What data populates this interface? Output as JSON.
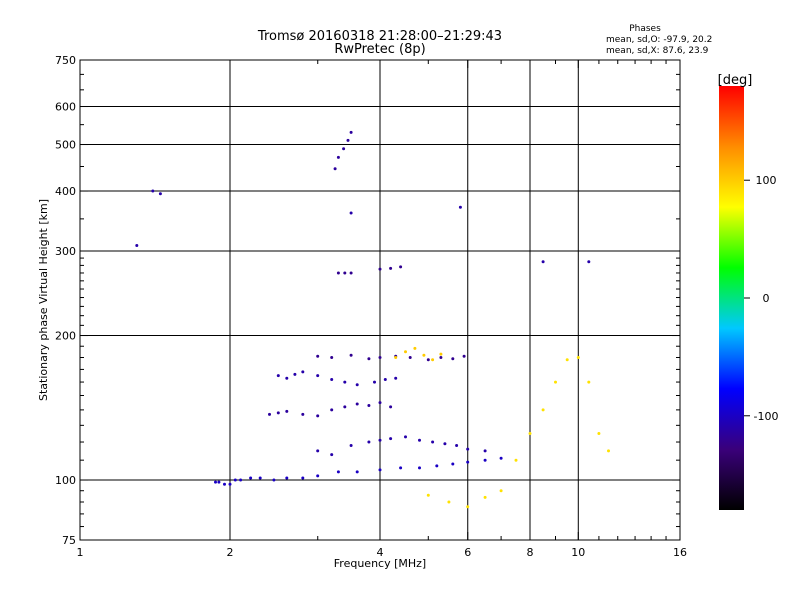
{
  "chart_data": {
    "type": "scatter",
    "title": "Tromsø 20160318 21:28:00–21:29:43",
    "subtitle": "RwPretec (8p)",
    "xlabel": "Frequency [MHz]",
    "ylabel": "Stationary phase Virtual Height [km]",
    "xscale": "log",
    "yscale": "log",
    "xlim": [
      1,
      16
    ],
    "ylim": [
      75,
      750
    ],
    "x_ticks": [
      1,
      2,
      4,
      6,
      8,
      10,
      16
    ],
    "y_ticks": [
      75,
      100,
      200,
      300,
      400,
      500,
      600,
      750
    ],
    "x_grid": [
      2,
      4,
      6,
      8,
      10
    ],
    "y_grid": [
      100,
      200,
      300,
      400,
      500,
      600
    ],
    "grid": true,
    "stats": {
      "title": "Phases",
      "line1": "mean, sd,O: -97.9, 20.2",
      "line2": "mean, sd,X:  87.6, 23.9"
    },
    "colorbar": {
      "label": "[deg]",
      "range": [
        -180,
        180
      ],
      "ticks": [
        100,
        0,
        -100
      ],
      "colors": [
        "#000000",
        "#3a007a",
        "#0000ff",
        "#00c8ff",
        "#00ff00",
        "#ffff00",
        "#ff8c00",
        "#ff0000"
      ]
    },
    "series": [
      {
        "x": [
          1.87,
          1.9,
          1.95,
          2.0,
          2.05,
          2.1,
          2.2,
          2.3,
          2.45,
          2.6,
          2.8,
          3.0,
          3.3,
          3.6,
          4.0,
          4.4,
          4.8,
          5.2,
          5.6,
          6.0,
          6.5,
          7.0
        ],
        "y": [
          99,
          99,
          98,
          98,
          100,
          100,
          101,
          101,
          100,
          101,
          101,
          102,
          104,
          104,
          105,
          106,
          106,
          107,
          108,
          109,
          110,
          111
        ],
        "phase": -100
      },
      {
        "x": [
          3.0,
          3.2,
          3.5,
          3.8,
          4.0,
          4.2,
          4.5,
          4.8,
          5.1,
          5.4,
          5.7,
          6.0,
          6.5
        ],
        "y": [
          115,
          113,
          118,
          120,
          121,
          122,
          123,
          121,
          120,
          119,
          118,
          116,
          115
        ],
        "phase": -110
      },
      {
        "x": [
          2.4,
          2.5,
          2.6,
          2.8,
          3.0,
          3.2,
          3.4,
          3.6,
          3.8,
          4.0,
          4.2
        ],
        "y": [
          137,
          138,
          139,
          137,
          136,
          140,
          142,
          144,
          143,
          145,
          142
        ],
        "phase": -115
      },
      {
        "x": [
          2.5,
          2.6,
          2.7,
          2.8,
          3.0,
          3.2,
          3.4,
          3.6,
          3.9,
          4.1,
          4.3
        ],
        "y": [
          165,
          163,
          166,
          168,
          165,
          162,
          160,
          158,
          160,
          162,
          163
        ],
        "phase": -110
      },
      {
        "x": [
          3.0,
          3.2,
          3.5,
          3.8,
          4.0,
          4.3,
          4.6,
          5.0,
          5.3,
          5.6,
          5.9
        ],
        "y": [
          181,
          180,
          182,
          179,
          180,
          181,
          180,
          178,
          180,
          179,
          181
        ],
        "phase": -120
      },
      {
        "x": [
          4.3,
          4.5,
          4.7,
          4.9,
          5.1,
          5.3
        ],
        "y": [
          180,
          185,
          188,
          182,
          178,
          183
        ],
        "phase": 100
      },
      {
        "x": [
          3.25,
          3.3,
          3.38,
          3.45,
          3.5
        ],
        "y": [
          445,
          470,
          490,
          510,
          530
        ],
        "phase": -115
      },
      {
        "x": [
          3.3,
          3.4,
          3.5,
          4.0,
          4.2,
          4.4
        ],
        "y": [
          270,
          270,
          270,
          275,
          276,
          278
        ],
        "phase": -120
      },
      {
        "x": [
          5.0,
          5.5,
          6.0,
          6.5,
          7.0,
          7.5,
          8.0,
          8.5,
          9.0,
          9.5,
          10.0,
          10.5,
          11.0,
          11.5
        ],
        "y": [
          93,
          90,
          88,
          92,
          95,
          110,
          125,
          140,
          160,
          178,
          180,
          160,
          125,
          115
        ],
        "phase": 90
      },
      {
        "x": [
          1.3,
          1.4,
          1.45,
          3.5,
          5.8,
          8.5,
          10.5
        ],
        "y": [
          308,
          400,
          395,
          360,
          370,
          285,
          285
        ],
        "phase": -110
      }
    ]
  }
}
